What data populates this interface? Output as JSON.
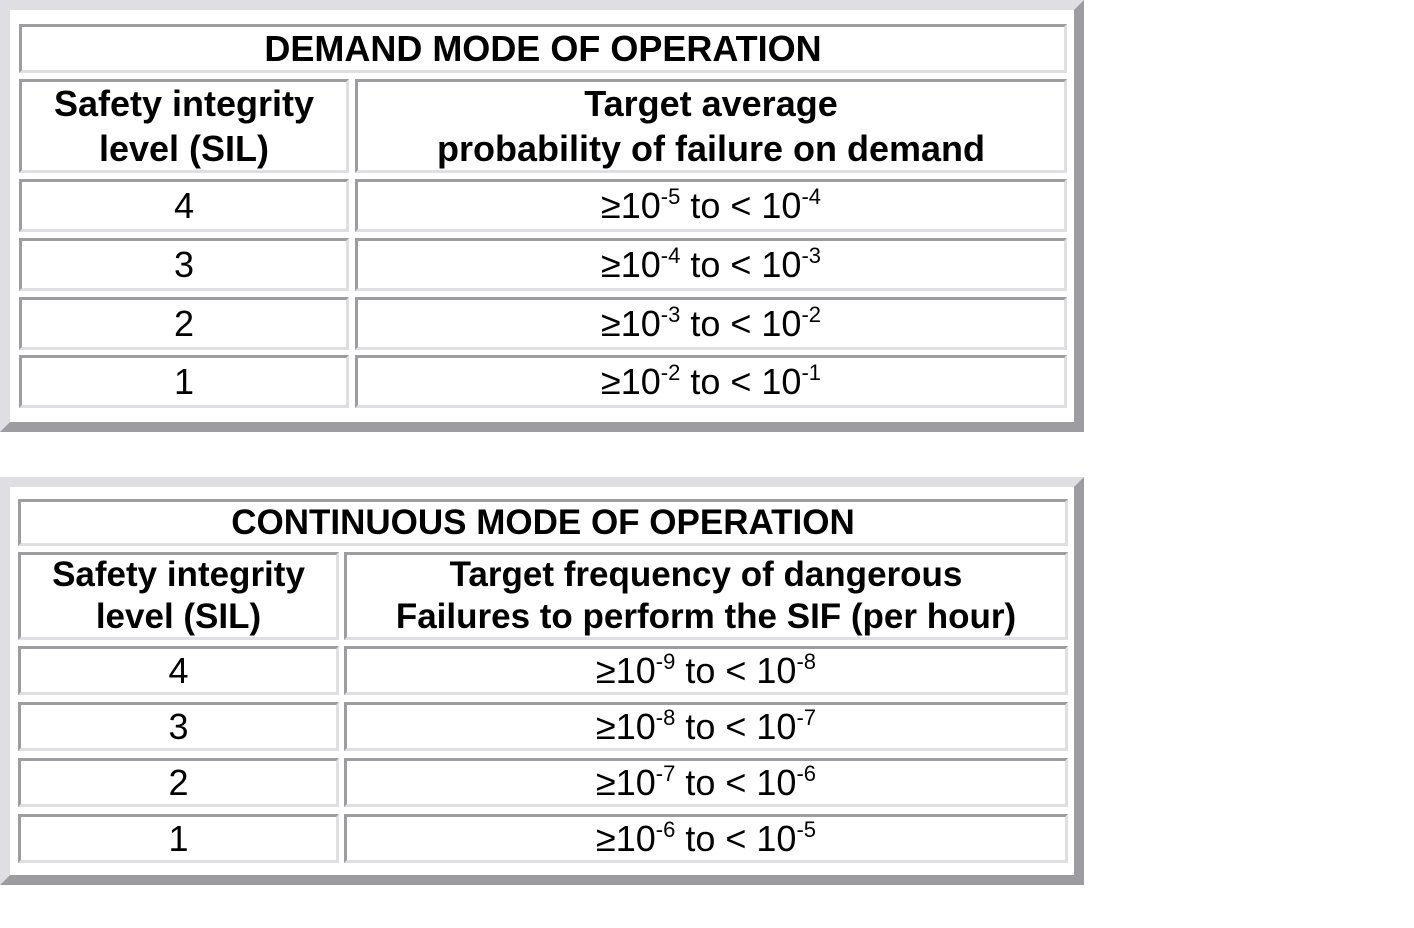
{
  "demand": {
    "title": "DEMAND MODE OF OPERATION",
    "col1": "Safety integrity level (SIL)",
    "col2_line1": "Target average",
    "col2_line2": "probability of failure on demand",
    "rows": [
      {
        "sil": "4",
        "lo": "-5",
        "hi": "-4"
      },
      {
        "sil": "3",
        "lo": "-4",
        "hi": "-3"
      },
      {
        "sil": "2",
        "lo": "-3",
        "hi": "-2"
      },
      {
        "sil": "1",
        "lo": "-2",
        "hi": "-1"
      }
    ]
  },
  "continuous": {
    "title": "CONTINUOUS MODE OF OPERATION",
    "col1": "Safety integrity level (SIL)",
    "col2_line1": "Target frequency of dangerous",
    "col2_line2": "Failures to perform the SIF (per hour)",
    "rows": [
      {
        "sil": "4",
        "lo": "-9",
        "hi": "-8"
      },
      {
        "sil": "3",
        "lo": "-8",
        "hi": "-7"
      },
      {
        "sil": "2",
        "lo": "-7",
        "hi": "-6"
      },
      {
        "sil": "1",
        "lo": "-6",
        "hi": "-5"
      }
    ]
  },
  "text": {
    "ge": "≥10",
    "to": " to < 10"
  }
}
